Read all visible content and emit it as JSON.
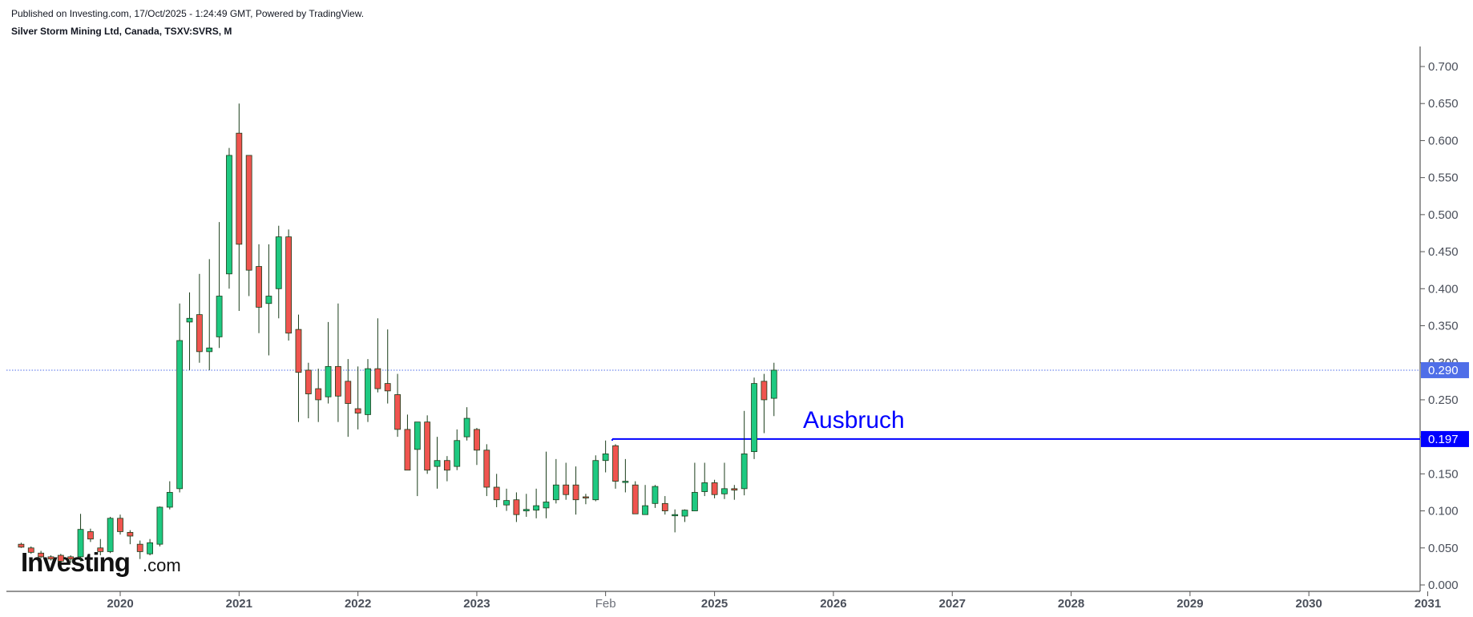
{
  "header": {
    "published": "Published on Investing.com, 17/Oct/2025 - 1:24:49 GMT, Powered by TradingView.",
    "symbol": "Silver Storm Mining Ltd, Canada, TSXV:SVRS, M"
  },
  "logo": {
    "main": "Investing",
    "suffix": ".com"
  },
  "colors": {
    "up": "#1ec981",
    "down": "#f0544f",
    "wick": "#1a3d1a",
    "price_line": "#4f6ee8",
    "level_line": "#0000ff",
    "axis": "#555555"
  },
  "chart_data": {
    "type": "candlestick",
    "interval": "M",
    "ylim": [
      0,
      0.7
    ],
    "yticks": [
      "0.700",
      "0.650",
      "0.600",
      "0.550",
      "0.500",
      "0.450",
      "0.400",
      "0.350",
      "0.300",
      "0.250",
      "0.200",
      "0.150",
      "0.100",
      "0.050",
      "0.000"
    ],
    "xticks": [
      {
        "label": "2020",
        "x": "2020-01",
        "bold": true
      },
      {
        "label": "2021",
        "x": "2021-01",
        "bold": true
      },
      {
        "label": "2022",
        "x": "2022-01",
        "bold": true
      },
      {
        "label": "2023",
        "x": "2023-01",
        "bold": true
      },
      {
        "label": "Feb",
        "x": "2024-02",
        "bold": false
      },
      {
        "label": "2025",
        "x": "2025-01",
        "bold": true
      },
      {
        "label": "2026",
        "x": "2026-01",
        "bold": true
      },
      {
        "label": "2027",
        "x": "2027-01",
        "bold": true
      },
      {
        "label": "2028",
        "x": "2028-01",
        "bold": true
      },
      {
        "label": "2029",
        "x": "2029-01",
        "bold": true
      },
      {
        "label": "2030",
        "x": "2030-01",
        "bold": true
      },
      {
        "label": "2031",
        "x": "2031-01",
        "bold": true
      }
    ],
    "last_price": {
      "value": 0.29,
      "label": "0.290"
    },
    "level": {
      "value": 0.197,
      "label": "0.197",
      "from": "2024-03",
      "annotation": "Ausbruch"
    },
    "candles": [
      {
        "t": "2019-03",
        "o": 0.055,
        "h": 0.057,
        "l": 0.05,
        "c": 0.051
      },
      {
        "t": "2019-04",
        "o": 0.05,
        "h": 0.052,
        "l": 0.042,
        "c": 0.044
      },
      {
        "t": "2019-05",
        "o": 0.043,
        "h": 0.046,
        "l": 0.036,
        "c": 0.038
      },
      {
        "t": "2019-06",
        "o": 0.038,
        "h": 0.04,
        "l": 0.033,
        "c": 0.035
      },
      {
        "t": "2019-07",
        "o": 0.04,
        "h": 0.042,
        "l": 0.03,
        "c": 0.032
      },
      {
        "t": "2019-08",
        "o": 0.038,
        "h": 0.04,
        "l": 0.03,
        "c": 0.035
      },
      {
        "t": "2019-09",
        "o": 0.038,
        "h": 0.096,
        "l": 0.032,
        "c": 0.075
      },
      {
        "t": "2019-10",
        "o": 0.072,
        "h": 0.076,
        "l": 0.058,
        "c": 0.062
      },
      {
        "t": "2019-11",
        "o": 0.05,
        "h": 0.062,
        "l": 0.04,
        "c": 0.045
      },
      {
        "t": "2019-12",
        "o": 0.045,
        "h": 0.092,
        "l": 0.043,
        "c": 0.09
      },
      {
        "t": "2020-01",
        "o": 0.09,
        "h": 0.095,
        "l": 0.068,
        "c": 0.072
      },
      {
        "t": "2020-02",
        "o": 0.071,
        "h": 0.074,
        "l": 0.055,
        "c": 0.066
      },
      {
        "t": "2020-03",
        "o": 0.055,
        "h": 0.06,
        "l": 0.035,
        "c": 0.045
      },
      {
        "t": "2020-04",
        "o": 0.042,
        "h": 0.062,
        "l": 0.04,
        "c": 0.057
      },
      {
        "t": "2020-05",
        "o": 0.055,
        "h": 0.106,
        "l": 0.052,
        "c": 0.105
      },
      {
        "t": "2020-06",
        "o": 0.105,
        "h": 0.14,
        "l": 0.102,
        "c": 0.125
      },
      {
        "t": "2020-07",
        "o": 0.13,
        "h": 0.38,
        "l": 0.125,
        "c": 0.33
      },
      {
        "t": "2020-08",
        "o": 0.355,
        "h": 0.395,
        "l": 0.29,
        "c": 0.36
      },
      {
        "t": "2020-09",
        "o": 0.365,
        "h": 0.42,
        "l": 0.3,
        "c": 0.315
      },
      {
        "t": "2020-10",
        "o": 0.315,
        "h": 0.44,
        "l": 0.29,
        "c": 0.32
      },
      {
        "t": "2020-11",
        "o": 0.335,
        "h": 0.49,
        "l": 0.32,
        "c": 0.39
      },
      {
        "t": "2020-12",
        "o": 0.42,
        "h": 0.59,
        "l": 0.4,
        "c": 0.58
      },
      {
        "t": "2021-01",
        "o": 0.61,
        "h": 0.65,
        "l": 0.37,
        "c": 0.46
      },
      {
        "t": "2021-02",
        "o": 0.58,
        "h": 0.58,
        "l": 0.39,
        "c": 0.425
      },
      {
        "t": "2021-03",
        "o": 0.43,
        "h": 0.46,
        "l": 0.34,
        "c": 0.375
      },
      {
        "t": "2021-04",
        "o": 0.38,
        "h": 0.46,
        "l": 0.31,
        "c": 0.39
      },
      {
        "t": "2021-05",
        "o": 0.4,
        "h": 0.485,
        "l": 0.36,
        "c": 0.47
      },
      {
        "t": "2021-06",
        "o": 0.47,
        "h": 0.48,
        "l": 0.33,
        "c": 0.34
      },
      {
        "t": "2021-07",
        "o": 0.345,
        "h": 0.365,
        "l": 0.22,
        "c": 0.287
      },
      {
        "t": "2021-08",
        "o": 0.29,
        "h": 0.3,
        "l": 0.225,
        "c": 0.258
      },
      {
        "t": "2021-09",
        "o": 0.265,
        "h": 0.292,
        "l": 0.22,
        "c": 0.25
      },
      {
        "t": "2021-10",
        "o": 0.254,
        "h": 0.355,
        "l": 0.245,
        "c": 0.295
      },
      {
        "t": "2021-11",
        "o": 0.295,
        "h": 0.38,
        "l": 0.22,
        "c": 0.255
      },
      {
        "t": "2021-12",
        "o": 0.275,
        "h": 0.305,
        "l": 0.2,
        "c": 0.245
      },
      {
        "t": "2022-01",
        "o": 0.238,
        "h": 0.295,
        "l": 0.21,
        "c": 0.232
      },
      {
        "t": "2022-02",
        "o": 0.23,
        "h": 0.305,
        "l": 0.22,
        "c": 0.292
      },
      {
        "t": "2022-03",
        "o": 0.292,
        "h": 0.36,
        "l": 0.26,
        "c": 0.265
      },
      {
        "t": "2022-04",
        "o": 0.272,
        "h": 0.345,
        "l": 0.245,
        "c": 0.262
      },
      {
        "t": "2022-05",
        "o": 0.257,
        "h": 0.285,
        "l": 0.2,
        "c": 0.21
      },
      {
        "t": "2022-06",
        "o": 0.21,
        "h": 0.23,
        "l": 0.155,
        "c": 0.155
      },
      {
        "t": "2022-07",
        "o": 0.183,
        "h": 0.22,
        "l": 0.12,
        "c": 0.22
      },
      {
        "t": "2022-08",
        "o": 0.22,
        "h": 0.229,
        "l": 0.15,
        "c": 0.155
      },
      {
        "t": "2022-09",
        "o": 0.16,
        "h": 0.2,
        "l": 0.13,
        "c": 0.168
      },
      {
        "t": "2022-10",
        "o": 0.168,
        "h": 0.174,
        "l": 0.14,
        "c": 0.155
      },
      {
        "t": "2022-11",
        "o": 0.16,
        "h": 0.21,
        "l": 0.155,
        "c": 0.195
      },
      {
        "t": "2022-12",
        "o": 0.2,
        "h": 0.24,
        "l": 0.195,
        "c": 0.225
      },
      {
        "t": "2023-01",
        "o": 0.21,
        "h": 0.212,
        "l": 0.162,
        "c": 0.182
      },
      {
        "t": "2023-02",
        "o": 0.182,
        "h": 0.19,
        "l": 0.12,
        "c": 0.132
      },
      {
        "t": "2023-03",
        "o": 0.132,
        "h": 0.15,
        "l": 0.105,
        "c": 0.115
      },
      {
        "t": "2023-04",
        "o": 0.108,
        "h": 0.13,
        "l": 0.1,
        "c": 0.114
      },
      {
        "t": "2023-05",
        "o": 0.115,
        "h": 0.125,
        "l": 0.085,
        "c": 0.095
      },
      {
        "t": "2023-06",
        "o": 0.1,
        "h": 0.123,
        "l": 0.092,
        "c": 0.102
      },
      {
        "t": "2023-07",
        "o": 0.101,
        "h": 0.13,
        "l": 0.09,
        "c": 0.107
      },
      {
        "t": "2023-08",
        "o": 0.104,
        "h": 0.18,
        "l": 0.09,
        "c": 0.112
      },
      {
        "t": "2023-09",
        "o": 0.115,
        "h": 0.17,
        "l": 0.11,
        "c": 0.135
      },
      {
        "t": "2023-10",
        "o": 0.135,
        "h": 0.165,
        "l": 0.115,
        "c": 0.122
      },
      {
        "t": "2023-11",
        "o": 0.135,
        "h": 0.16,
        "l": 0.095,
        "c": 0.115
      },
      {
        "t": "2023-12",
        "o": 0.119,
        "h": 0.123,
        "l": 0.109,
        "c": 0.118
      },
      {
        "t": "2024-01",
        "o": 0.115,
        "h": 0.175,
        "l": 0.113,
        "c": 0.168
      },
      {
        "t": "2024-02",
        "o": 0.168,
        "h": 0.195,
        "l": 0.152,
        "c": 0.177
      },
      {
        "t": "2024-03",
        "o": 0.188,
        "h": 0.19,
        "l": 0.13,
        "c": 0.14
      },
      {
        "t": "2024-04",
        "o": 0.14,
        "h": 0.17,
        "l": 0.125,
        "c": 0.14
      },
      {
        "t": "2024-05",
        "o": 0.135,
        "h": 0.14,
        "l": 0.096,
        "c": 0.096
      },
      {
        "t": "2024-06",
        "o": 0.095,
        "h": 0.135,
        "l": 0.095,
        "c": 0.107
      },
      {
        "t": "2024-07",
        "o": 0.11,
        "h": 0.135,
        "l": 0.104,
        "c": 0.133
      },
      {
        "t": "2024-08",
        "o": 0.11,
        "h": 0.12,
        "l": 0.095,
        "c": 0.1
      },
      {
        "t": "2024-09",
        "o": 0.094,
        "h": 0.102,
        "l": 0.071,
        "c": 0.095
      },
      {
        "t": "2024-10",
        "o": 0.093,
        "h": 0.102,
        "l": 0.085,
        "c": 0.101
      },
      {
        "t": "2024-11",
        "o": 0.1,
        "h": 0.165,
        "l": 0.1,
        "c": 0.125
      },
      {
        "t": "2024-12",
        "o": 0.126,
        "h": 0.165,
        "l": 0.12,
        "c": 0.138
      },
      {
        "t": "2025-01",
        "o": 0.138,
        "h": 0.142,
        "l": 0.117,
        "c": 0.122
      },
      {
        "t": "2025-02",
        "o": 0.123,
        "h": 0.165,
        "l": 0.116,
        "c": 0.13
      },
      {
        "t": "2025-03",
        "o": 0.13,
        "h": 0.135,
        "l": 0.115,
        "c": 0.128
      },
      {
        "t": "2025-04",
        "o": 0.13,
        "h": 0.235,
        "l": 0.121,
        "c": 0.177
      },
      {
        "t": "2025-05",
        "o": 0.18,
        "h": 0.28,
        "l": 0.17,
        "c": 0.272
      },
      {
        "t": "2025-06",
        "o": 0.275,
        "h": 0.285,
        "l": 0.205,
        "c": 0.25
      },
      {
        "t": "2025-07",
        "o": 0.252,
        "h": 0.3,
        "l": 0.228,
        "c": 0.29
      }
    ]
  }
}
